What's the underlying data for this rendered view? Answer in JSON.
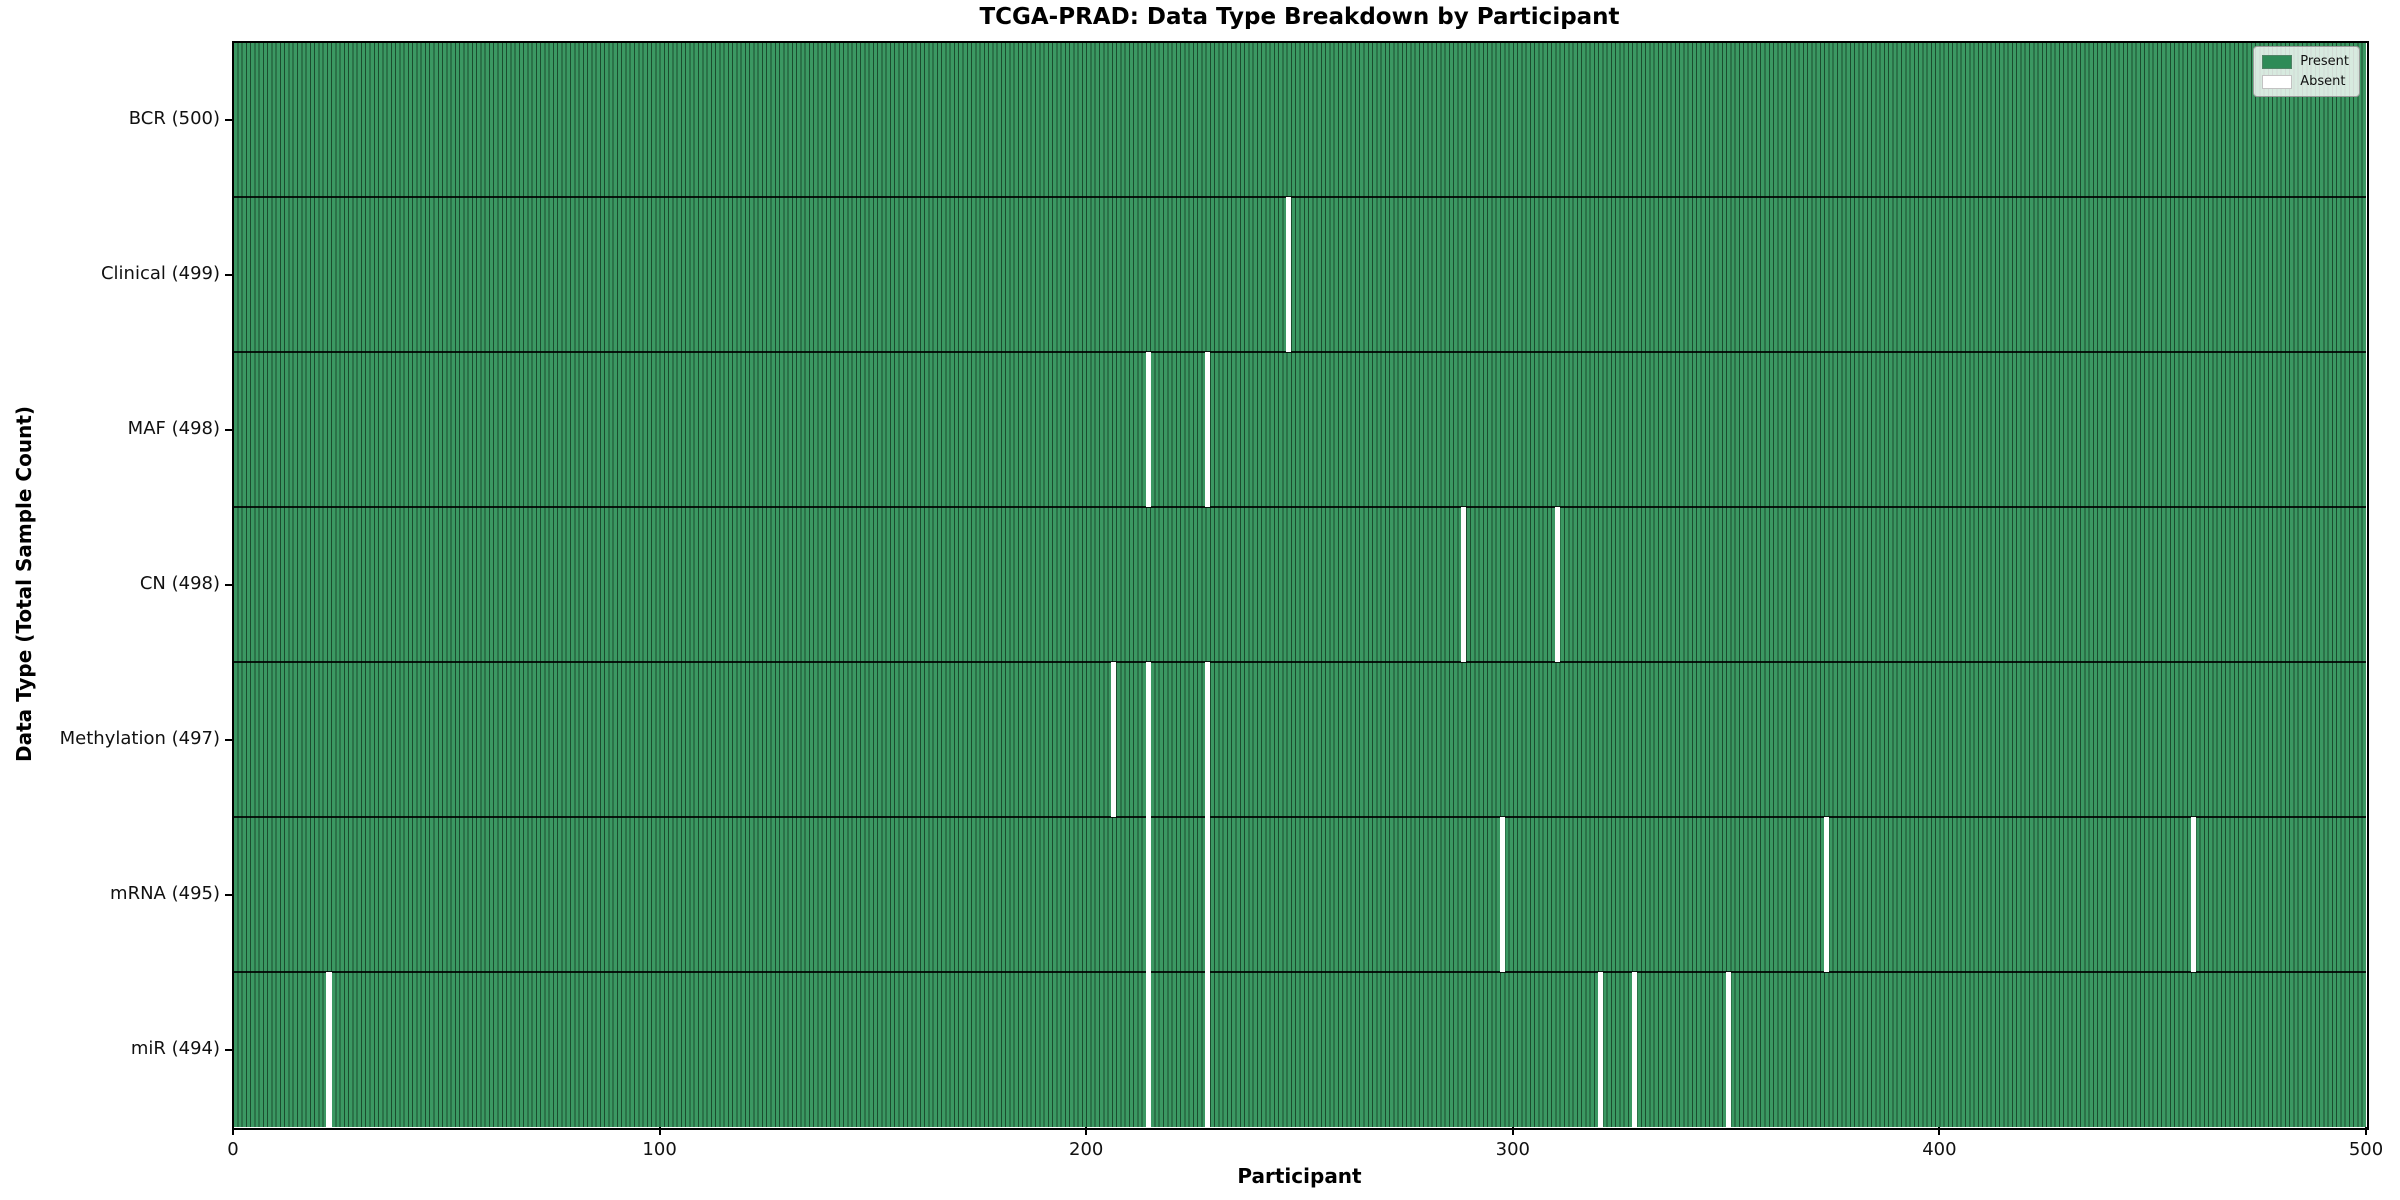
{
  "chart_data": {
    "type": "heatmap",
    "title": "TCGA-PRAD: Data Type Breakdown by Participant",
    "xlabel": "Participant",
    "ylabel": "Data Type (Total Sample Count)",
    "xlim": [
      0,
      500
    ],
    "xticks": [
      0,
      100,
      200,
      300,
      400,
      500
    ],
    "n_participants": 500,
    "present_color": "#2e8b57",
    "absent_color": "#ffffff",
    "grid": false,
    "legend_position": "upper right",
    "legend": [
      {
        "label": "Present",
        "color": "#2e8b57"
      },
      {
        "label": "Absent",
        "color": "#ffffff"
      }
    ],
    "rows": [
      {
        "label": "BCR (500)",
        "data_type": "BCR",
        "total": 500,
        "absent_participants": []
      },
      {
        "label": "Clinical (499)",
        "data_type": "Clinical",
        "total": 499,
        "absent_participants": [
          247
        ]
      },
      {
        "label": "MAF (498)",
        "data_type": "MAF",
        "total": 498,
        "absent_participants": [
          214,
          228
        ]
      },
      {
        "label": "CN (498)",
        "data_type": "CN",
        "total": 498,
        "absent_participants": [
          288,
          310
        ]
      },
      {
        "label": "Methylation (497)",
        "data_type": "Methylation",
        "total": 497,
        "absent_participants": [
          206,
          214,
          228
        ]
      },
      {
        "label": "mRNA (495)",
        "data_type": "mRNA",
        "total": 495,
        "absent_participants": [
          214,
          228,
          297,
          373,
          459
        ]
      },
      {
        "label": "miR (494)",
        "data_type": "miR",
        "total": 494,
        "absent_participants": [
          22,
          214,
          228,
          320,
          328,
          350
        ]
      }
    ]
  }
}
